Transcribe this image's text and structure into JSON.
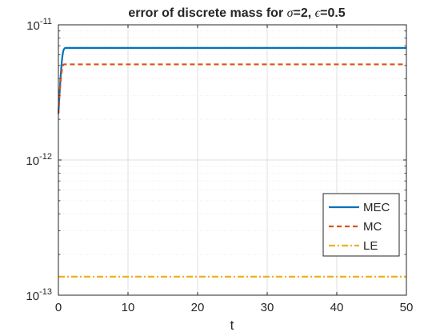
{
  "chart_data": {
    "type": "line",
    "title_prefix": "error of discrete mass for ",
    "title_sigma": "σ",
    "title_mid": "=2, ",
    "title_eps": "ϵ",
    "title_suffix": "=0.5",
    "xlabel": "t",
    "ylabel": "",
    "xlim": [
      0,
      50
    ],
    "ylim": [
      1e-13,
      1e-11
    ],
    "yscale": "log",
    "grid": true,
    "x_ticks": [
      "0",
      "10",
      "20",
      "30",
      "40",
      "50"
    ],
    "y_ticks": [
      {
        "base": "10",
        "exp": "-13"
      },
      {
        "base": "10",
        "exp": "-12"
      },
      {
        "base": "10",
        "exp": "-11"
      }
    ],
    "legend_position": "lower-right",
    "series": [
      {
        "name": "MEC",
        "color": "#0072BD",
        "dash": "solid",
        "x": [
          0,
          0.1,
          0.2,
          0.3,
          0.4,
          0.5,
          0.6,
          0.7,
          0.8,
          0.9,
          1.0,
          1.2,
          1.5,
          2,
          5,
          10,
          20,
          30,
          40,
          50
        ],
        "y": [
          2.2e-12,
          2.7e-12,
          3.3e-12,
          4e-12,
          4.7e-12,
          5.4e-12,
          6e-12,
          6.4e-12,
          6.6e-12,
          6.7e-12,
          6.75e-12,
          6.75e-12,
          6.75e-12,
          6.75e-12,
          6.75e-12,
          6.75e-12,
          6.75e-12,
          6.75e-12,
          6.75e-12,
          6.75e-12
        ]
      },
      {
        "name": "MC",
        "color": "#D95319",
        "dash": "dashed",
        "x": [
          0,
          0.1,
          0.2,
          0.3,
          0.4,
          0.5,
          0.6,
          0.7,
          0.8,
          1.0,
          2,
          10,
          20,
          30,
          40,
          50
        ],
        "y": [
          2.2e-12,
          2.7e-12,
          3.2e-12,
          3.7e-12,
          4.2e-12,
          4.6e-12,
          4.9e-12,
          5.05e-12,
          5.1e-12,
          5.1e-12,
          5.1e-12,
          5.1e-12,
          5.1e-12,
          5.1e-12,
          5.1e-12,
          5.1e-12
        ]
      },
      {
        "name": "LE",
        "color": "#EDB120",
        "dash": "dashdot",
        "x": [
          0,
          50
        ],
        "y": [
          1.37e-13,
          1.37e-13
        ]
      }
    ]
  }
}
